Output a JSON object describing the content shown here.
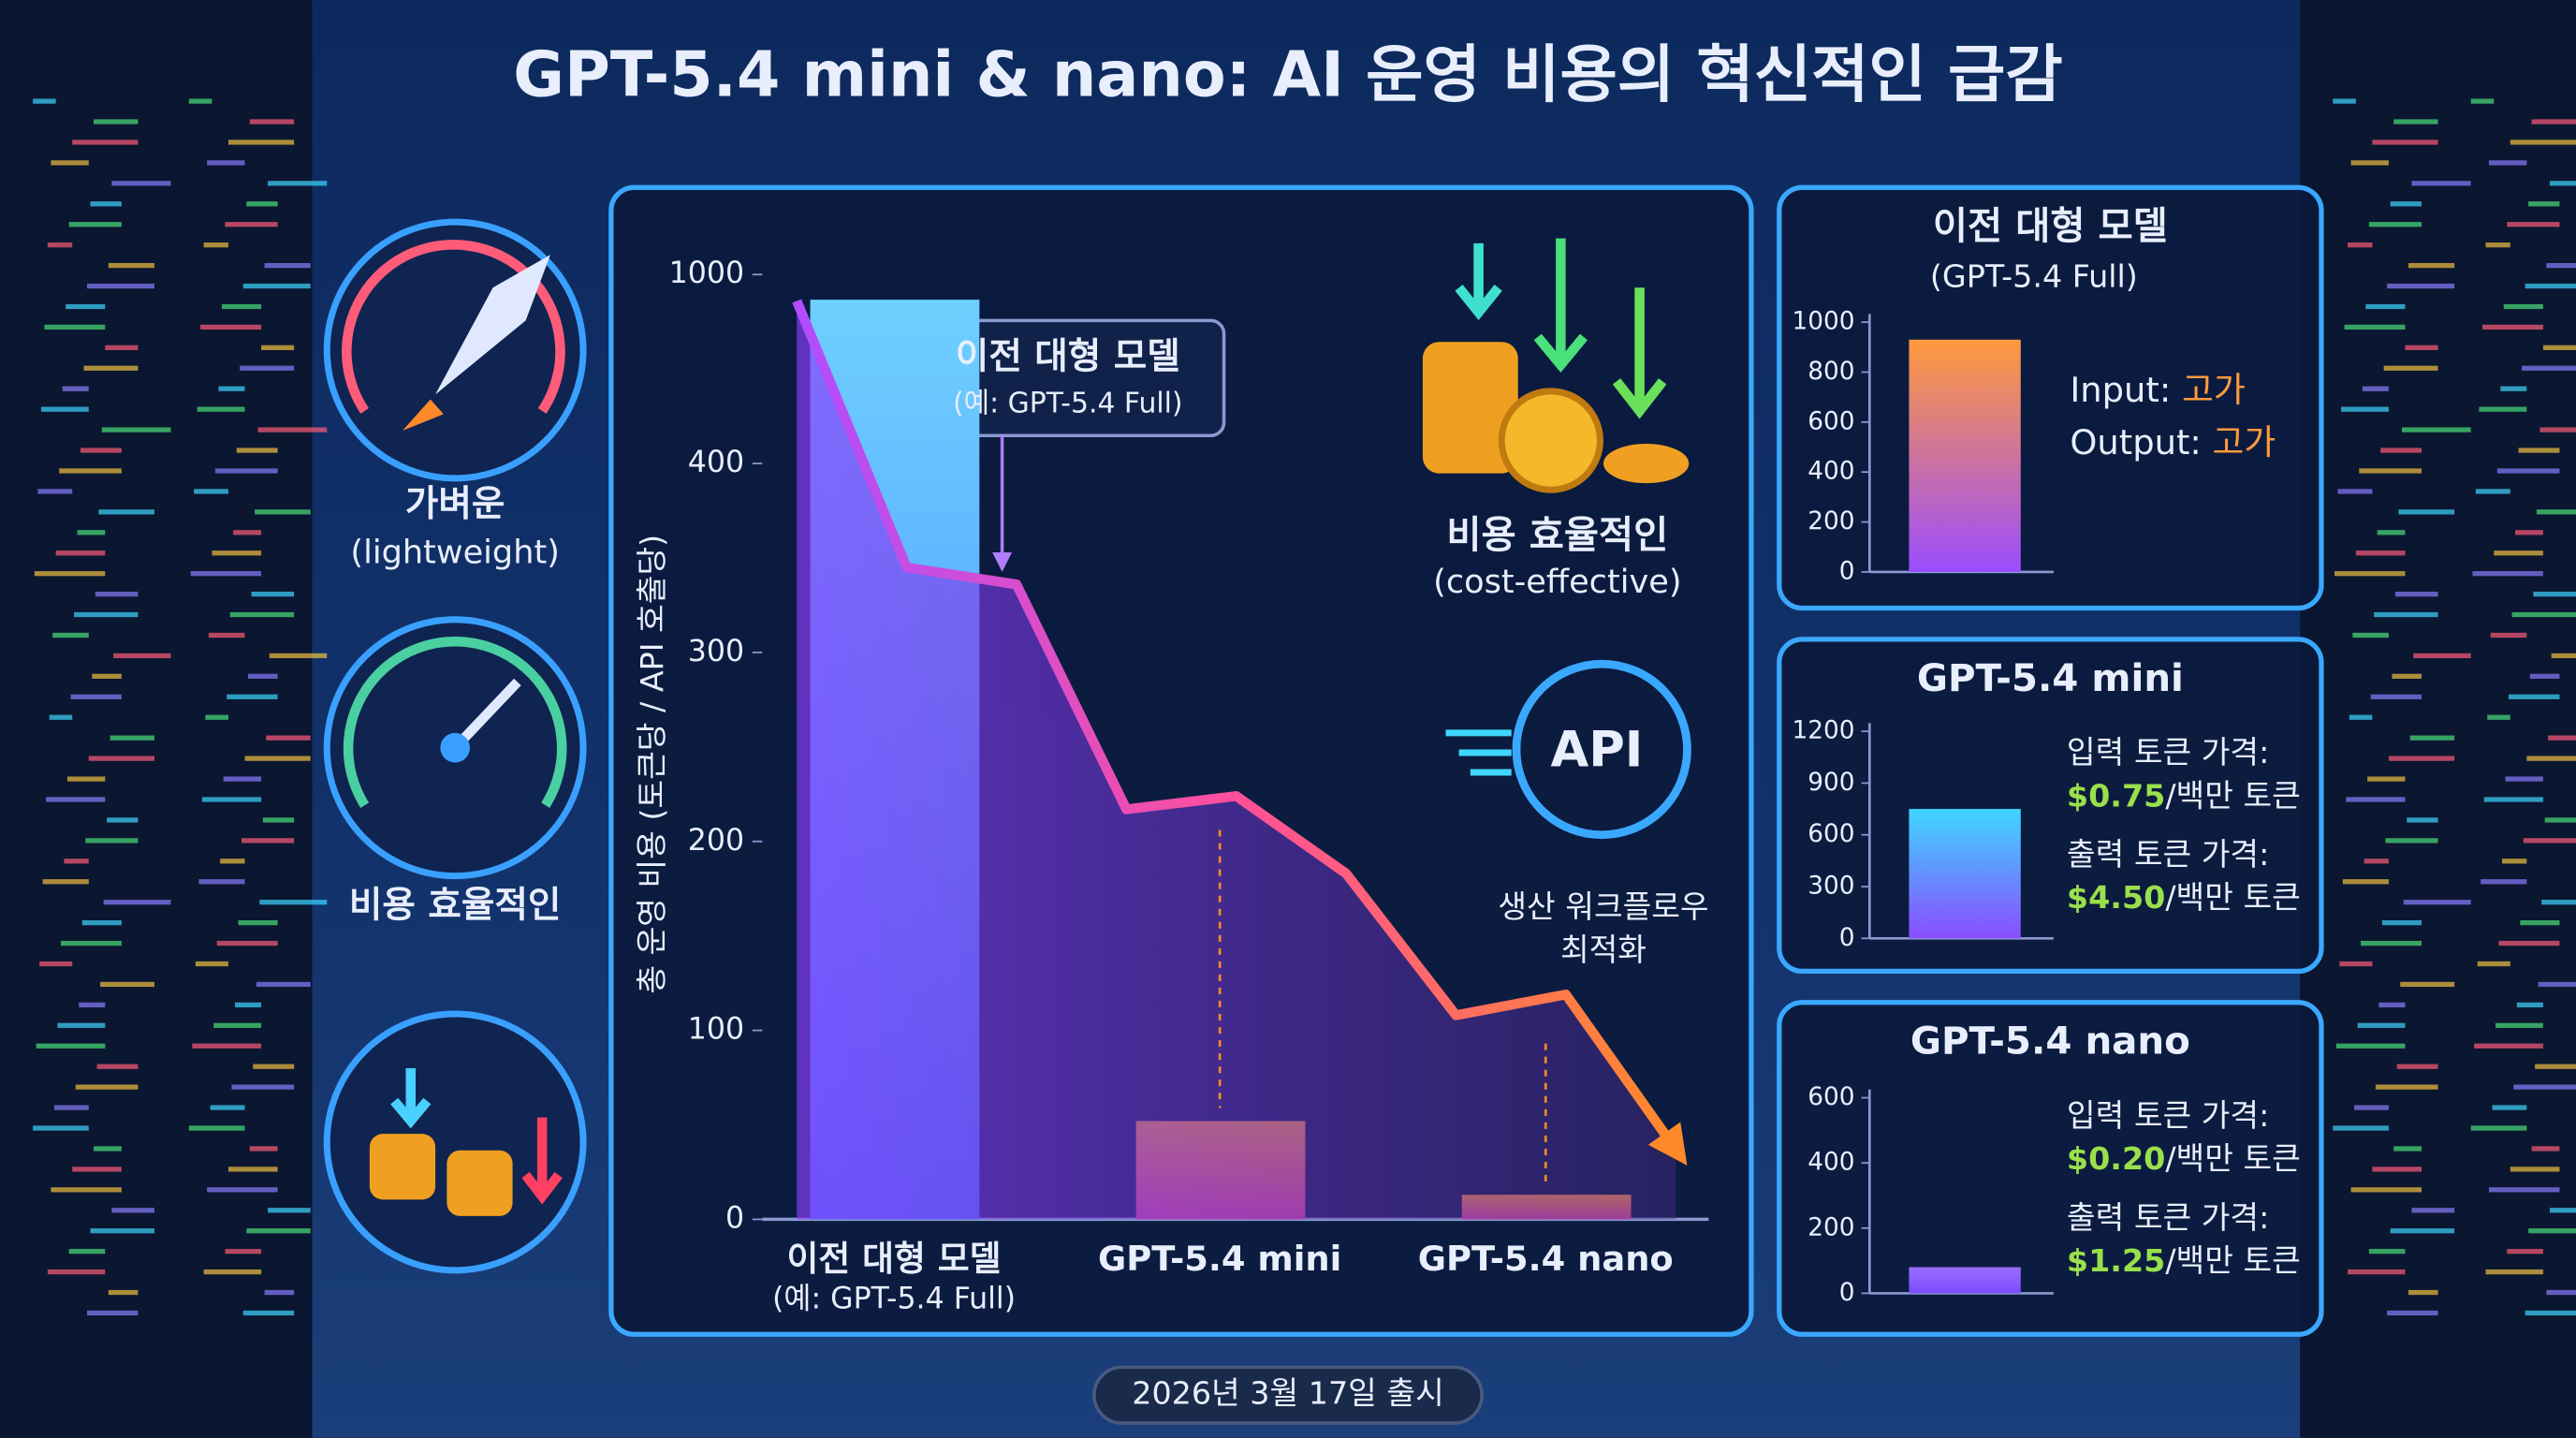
{
  "title": "GPT-5.4 mini & nano: AI 운영 비용의 혁신적인 급감",
  "features": [
    {
      "label": "가벼운",
      "sub": "(lightweight)"
    },
    {
      "label": "비용 효율적인"
    }
  ],
  "release_date": "2026년 3월 17일 출시",
  "chart_data": [
    {
      "type": "bar",
      "y_label": "총 운영 비용 (토큰당 / API 호출당)",
      "categories": [
        "이전 대형 모델",
        "GPT-5.4 mini",
        "GPT-5.4 nano"
      ],
      "category_note": "(예: GPT-5.4 Full)",
      "values": [
        920,
        52,
        13
      ],
      "colors": [
        [
          "#6fd0ff",
          "#3d7bff"
        ],
        [
          "#ff9a3c",
          "#e2489f"
        ],
        [
          "#ff9a3c",
          "#e2489f"
        ]
      ],
      "ylim": [
        0,
        1000
      ],
      "yticks": [
        0,
        100,
        200,
        300,
        400,
        1000
      ],
      "trend_values": [
        916,
        345,
        336,
        217,
        224,
        183,
        108,
        119,
        37
      ],
      "annotations": [
        {
          "text": "이전 대형 모델",
          "sub": "(예: GPT-5.4 Full)"
        },
        {
          "text": "비용 효율적인",
          "sub": "(cost-effective)"
        },
        {
          "text": "API"
        },
        {
          "text": "생산 워크플로우",
          "sub": "최적화"
        }
      ]
    },
    {
      "type": "bar",
      "title": "이전 대형 모델",
      "subtitle": "(GPT-5.4 Full)",
      "values": [
        930
      ],
      "colors": [
        "#ff9a3c",
        "#9b4dff"
      ],
      "ylim": [
        0,
        1000
      ],
      "yticks": [
        0,
        200,
        400,
        600,
        800,
        1000
      ],
      "notes": [
        {
          "label": "Input: ",
          "value": "고가"
        },
        {
          "label": "Output: ",
          "value": "고가"
        }
      ]
    },
    {
      "type": "bar",
      "title": "GPT-5.4 mini",
      "values": [
        750
      ],
      "colors": [
        "#3fd6ff",
        "#8a4dff"
      ],
      "ylim": [
        0,
        1200
      ],
      "yticks": [
        0,
        300,
        600,
        900,
        1200
      ],
      "notes": [
        {
          "label": "입력 토큰 가격:",
          "price": "$0.75",
          "unit": "/백만 토큰"
        },
        {
          "label": "출력 토큰 가격:",
          "price": "$4.50",
          "unit": "/백만 토큰"
        }
      ]
    },
    {
      "type": "bar",
      "title": "GPT-5.4 nano",
      "values": [
        80
      ],
      "colors": [
        "#9b6dff",
        "#7a4dff"
      ],
      "ylim": [
        0,
        600
      ],
      "yticks": [
        0,
        200,
        400,
        600
      ],
      "notes": [
        {
          "label": "입력 토큰 가격:",
          "price": "$0.20",
          "unit": "/백만 토큰"
        },
        {
          "label": "출력 토큰 가격:",
          "price": "$1.25",
          "unit": "/백만 토큰"
        }
      ]
    }
  ]
}
